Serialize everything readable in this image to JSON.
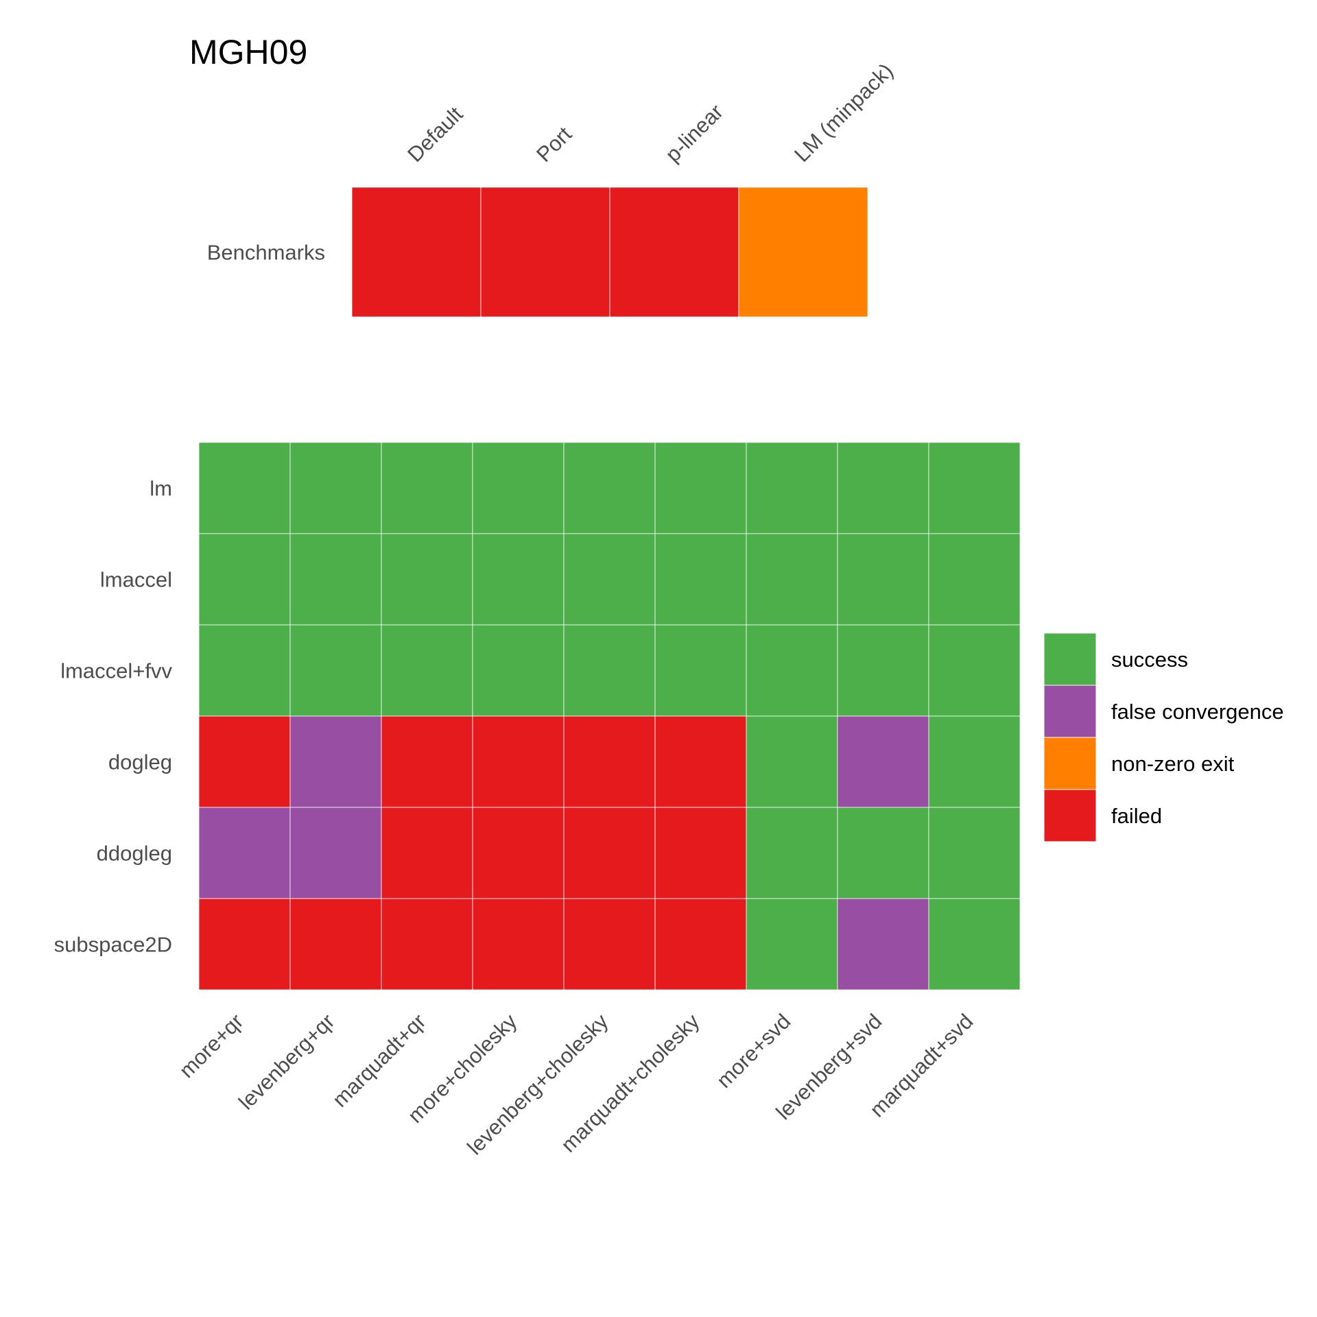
{
  "chart_data": [
    {
      "type": "heatmap",
      "title": "MGH09",
      "columns": [
        "Default",
        "Port",
        "p-linear",
        "LM (minpack)"
      ],
      "rows": [
        "Benchmarks"
      ],
      "values": [
        [
          "failed",
          "failed",
          "failed",
          "non-zero exit"
        ]
      ]
    },
    {
      "type": "heatmap",
      "columns": [
        "more+qr",
        "levenberg+qr",
        "marquadt+qr",
        "more+cholesky",
        "levenberg+cholesky",
        "marquadt+cholesky",
        "more+svd",
        "levenberg+svd",
        "marquadt+svd"
      ],
      "rows": [
        "lm",
        "lmaccel",
        "lmaccel+fvv",
        "dogleg",
        "ddogleg",
        "subspace2D"
      ],
      "values": [
        [
          "success",
          "success",
          "success",
          "success",
          "success",
          "success",
          "success",
          "success",
          "success"
        ],
        [
          "success",
          "success",
          "success",
          "success",
          "success",
          "success",
          "success",
          "success",
          "success"
        ],
        [
          "success",
          "success",
          "success",
          "success",
          "success",
          "success",
          "success",
          "success",
          "success"
        ],
        [
          "failed",
          "false convergence",
          "failed",
          "failed",
          "failed",
          "failed",
          "success",
          "false convergence",
          "success"
        ],
        [
          "false convergence",
          "false convergence",
          "failed",
          "failed",
          "failed",
          "failed",
          "success",
          "success",
          "success"
        ],
        [
          "failed",
          "failed",
          "failed",
          "failed",
          "failed",
          "failed",
          "success",
          "false convergence",
          "success"
        ]
      ]
    }
  ],
  "legend": {
    "placement": "right",
    "items": [
      {
        "label": "success",
        "color": "#4daf4a"
      },
      {
        "label": "false convergence",
        "color": "#984ea3"
      },
      {
        "label": "non-zero exit",
        "color": "#ff7f00"
      },
      {
        "label": "failed",
        "color": "#e41a1c"
      }
    ]
  }
}
